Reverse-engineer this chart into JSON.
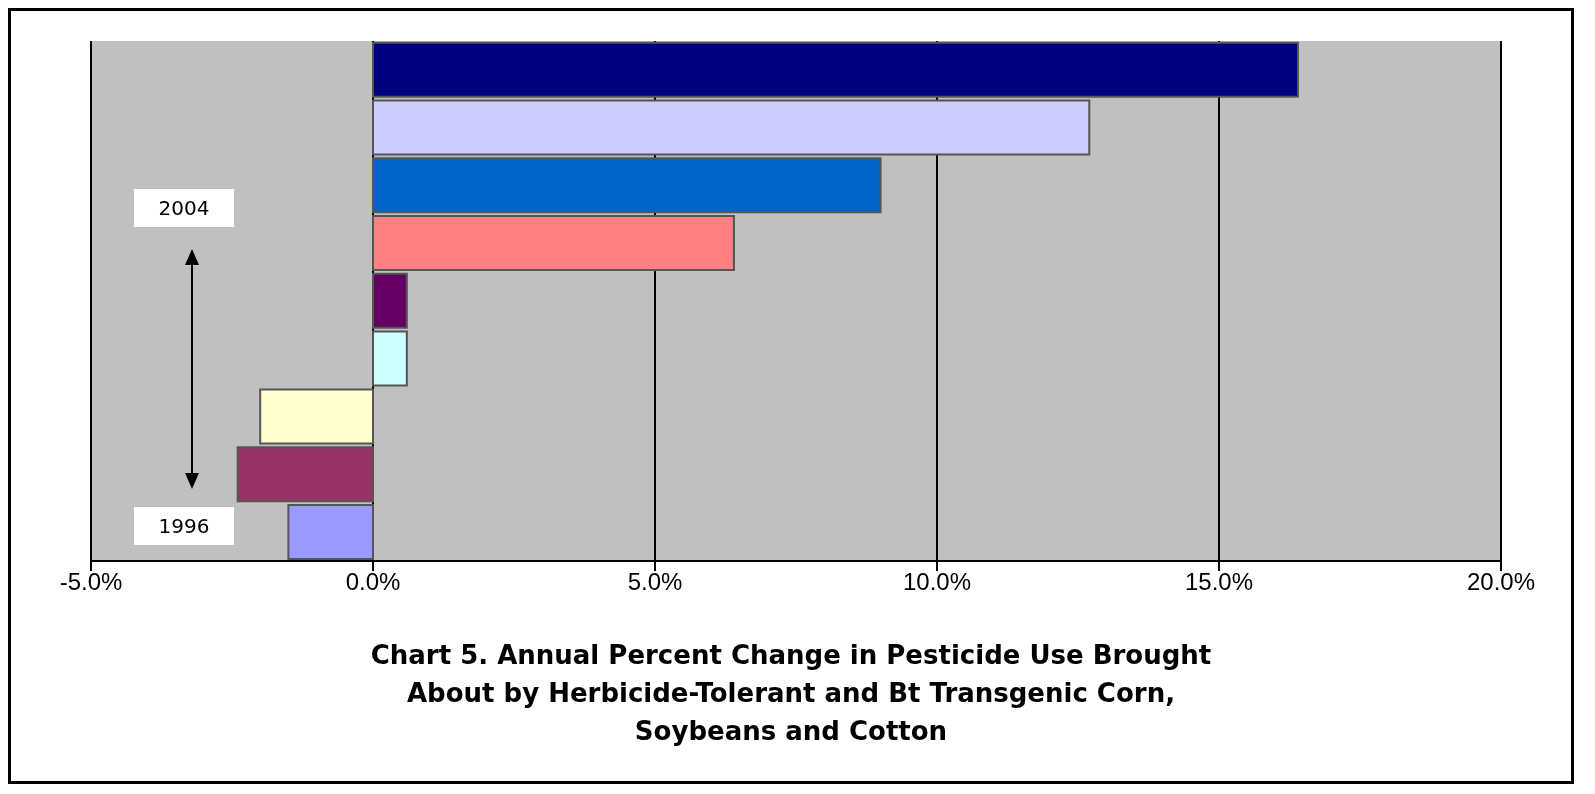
{
  "chart_data": {
    "type": "bar",
    "orientation": "horizontal",
    "title": "Chart 5.  Annual Percent Change in Pesticide Use Brought About by Herbicide-Tolerant and Bt Transgenic Corn, Soybeans and Cotton",
    "categories": [
      null,
      null,
      null,
      null,
      null,
      null,
      null,
      null,
      null
    ],
    "values": [
      16.4,
      12.7,
      9.0,
      6.4,
      0.6,
      0.6,
      -2.0,
      -2.4,
      -1.5
    ],
    "colors": [
      "#000080",
      "#ccccff",
      "#0066cc",
      "#ff8080",
      "#660066",
      "#ccffff",
      "#ffffcc",
      "#993366",
      "#9999ff"
    ],
    "xlim": [
      -5,
      20
    ],
    "xticks": [
      {
        "value": -5,
        "label": "-5.0%"
      },
      {
        "value": 0,
        "label": "0.0%"
      },
      {
        "value": 5,
        "label": "5.0%"
      },
      {
        "value": 10,
        "label": "10.0%"
      },
      {
        "value": 15,
        "label": "15.0%"
      },
      {
        "value": 20,
        "label": "20.0%"
      }
    ],
    "grid": "x",
    "annotations": [
      "2004",
      "1996"
    ]
  }
}
